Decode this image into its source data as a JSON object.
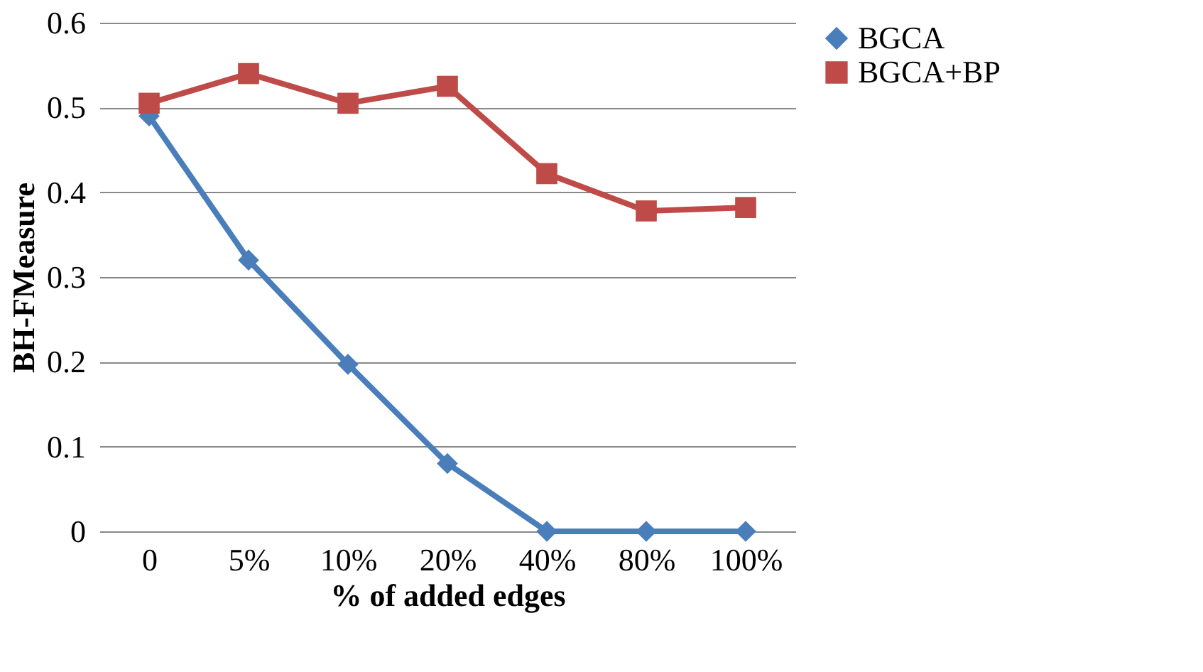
{
  "chart_data": {
    "type": "line",
    "xlabel": "% of added edges",
    "ylabel": "BH-FMeasure",
    "categories": [
      "0",
      "5%",
      "10%",
      "20%",
      "40%",
      "80%",
      "100%"
    ],
    "series": [
      {
        "name": "BGCA",
        "color": "#4a7ebb",
        "marker": "diamond",
        "values": [
          0.49,
          0.32,
          0.197,
          0.08,
          0,
          0,
          0
        ]
      },
      {
        "name": "BGCA+BP",
        "color": "#be4b48",
        "marker": "square",
        "values": [
          0.505,
          0.54,
          0.505,
          0.525,
          0.422,
          0.378,
          0.382
        ]
      }
    ],
    "ylim": [
      0,
      0.6
    ],
    "yticks": [
      0,
      0.1,
      0.2,
      0.3,
      0.4,
      0.5,
      0.6
    ],
    "grid": "y",
    "legend": "right",
    "line_style": "solid"
  }
}
